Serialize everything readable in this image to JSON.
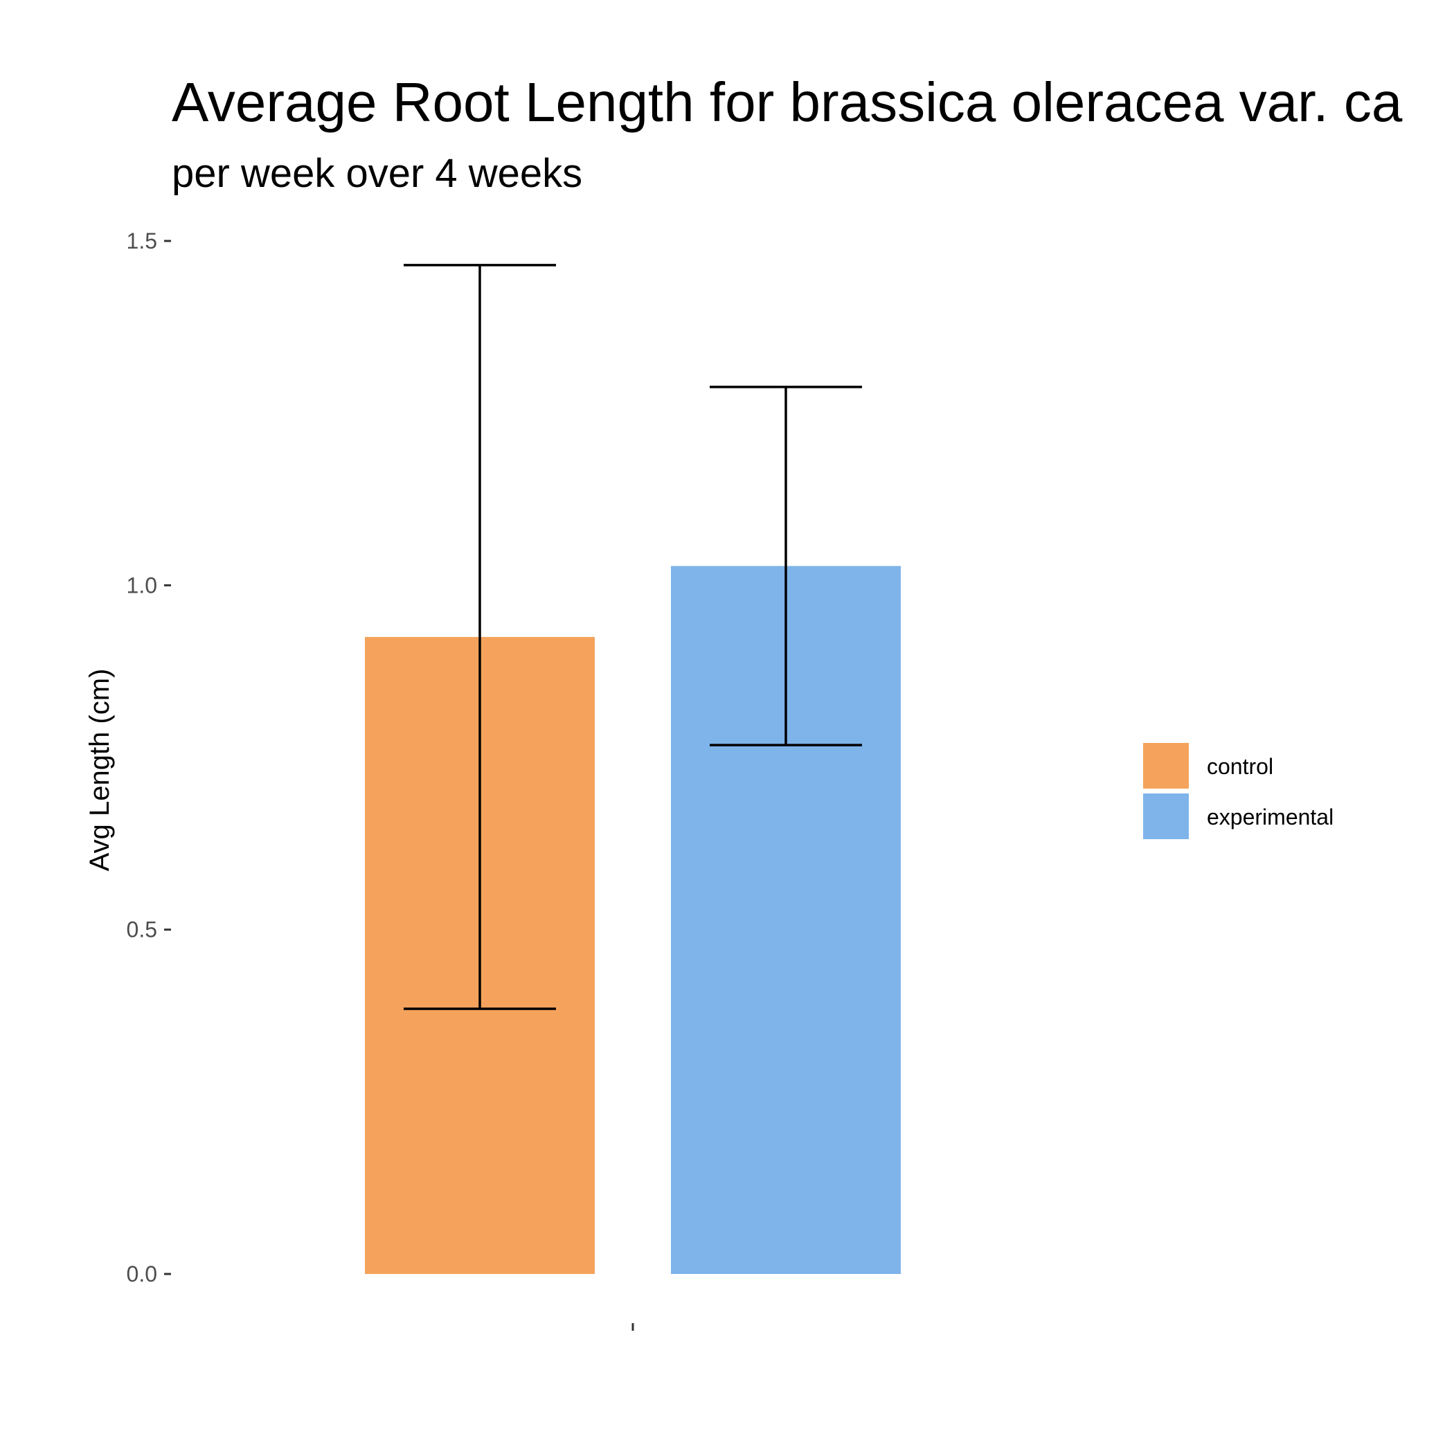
{
  "chart_data": {
    "type": "bar",
    "title": "Average Root Length for brassica oleracea var. ca",
    "subtitle": "per week over 4 weeks",
    "xlabel": "",
    "ylabel": "Avg Length (cm)",
    "ylim": [
      0,
      1.5
    ],
    "yticks": [
      "0.0",
      "0.5",
      "1.0",
      "1.5"
    ],
    "categories": [
      ""
    ],
    "series": [
      {
        "name": "control",
        "color": "#F5A35C",
        "values": [
          0.925
        ],
        "error_low": [
          0.385
        ],
        "error_high": [
          1.465
        ]
      },
      {
        "name": "experimental",
        "color": "#7EB4EA",
        "values": [
          1.028
        ],
        "error_low": [
          0.768
        ],
        "error_high": [
          1.288
        ]
      }
    ],
    "grid": false,
    "legend_position": "right"
  }
}
